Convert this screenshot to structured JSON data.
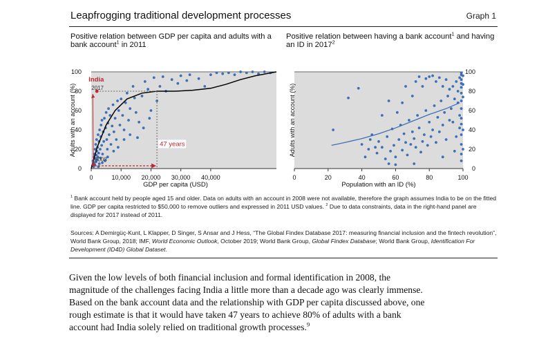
{
  "figure": {
    "title": "Leapfrogging traditional development processes",
    "graph_label": "Graph 1"
  },
  "left_panel": {
    "title": "Positive relation between GDP per capita and adults with a bank account",
    "title_sup": "1",
    "title_suffix": " in 2011"
  },
  "right_panel": {
    "title": "Positive relation between having a bank account",
    "title_sup1": "1",
    "title_mid": " and having an ID in 2017",
    "title_sup2": "2"
  },
  "footnote": {
    "sup1": "1",
    "text1": " Bank account held by people aged 15 and older. Data on adults with an account in 2008 were not available, therefore the graph assumes India to be on the fitted line. GDP per capita restricted to $50,000 to remove outliers and expressed in 2011 USD values. ",
    "sup2": "2",
    "text2": " Due to data constraints, data in the right-hand panel are displayed for 2017 instead of 2011."
  },
  "sources": {
    "t1": "Sources: A Demirgüç-Kunt, L Klapper, D Singer, S Ansar and J Hess, “The Global Findex Database 2017: measuring financial inclusion and the fintech revolution”, World Bank Group, 2018; IMF, ",
    "i1": "World Economic Outlook",
    "t2": ", October 2019; World Bank Group, ",
    "i2": "Global Findex Database",
    "t3": "; World Bank Group, ",
    "i3": "Identification For Development (ID4D) Global Dataset",
    "t4": "."
  },
  "body": {
    "text": "Given the low levels of both financial inclusion and formal identification in 2008, the magnitude of the challenges facing India a little more than a decade ago was clearly immense. Based on the bank account data and the relationship with GDP per capita discussed above, one rough estimate is that it would have taken 47 years to achieve 80% of adults with a bank account had India solely relied on traditional growth processes.",
    "sup": "9"
  },
  "colors": {
    "plot_bg": "#dcdcdc",
    "dots": "#3d6fb5",
    "fit_line_left": "#000000",
    "fit_line_right": "#3d6fb5",
    "india_annotation": "#c0262d",
    "reference_line": "#666666"
  },
  "chart_data": [
    {
      "type": "scatter",
      "title": "",
      "xlabel": "GDP per capita (USD)",
      "ylabel": "Adults with an account (%)",
      "xlim": [
        0,
        62000
      ],
      "ylim": [
        0,
        100
      ],
      "x_ticks": [
        "0",
        "10,000",
        "20,000",
        "30,000",
        "40,000"
      ],
      "x_tick_values": [
        0,
        10000,
        20000,
        30000,
        40000
      ],
      "y_ticks": [
        "0",
        "20",
        "40",
        "60",
        "80",
        "100"
      ],
      "y_tick_values": [
        0,
        20,
        40,
        60,
        80,
        100
      ],
      "grid": false,
      "points": [
        [
          400,
          3
        ],
        [
          600,
          8
        ],
        [
          800,
          2
        ],
        [
          900,
          12
        ],
        [
          1000,
          6
        ],
        [
          1100,
          15
        ],
        [
          1200,
          4
        ],
        [
          1300,
          20
        ],
        [
          1400,
          10
        ],
        [
          1500,
          25
        ],
        [
          1600,
          7
        ],
        [
          1700,
          14
        ],
        [
          1800,
          30
        ],
        [
          1900,
          18
        ],
        [
          2000,
          9
        ],
        [
          2100,
          22
        ],
        [
          2200,
          12
        ],
        [
          2300,
          35
        ],
        [
          2500,
          16
        ],
        [
          2600,
          28
        ],
        [
          2700,
          5
        ],
        [
          2800,
          40
        ],
        [
          3000,
          20
        ],
        [
          3100,
          11
        ],
        [
          3200,
          33
        ],
        [
          3300,
          45
        ],
        [
          3500,
          24
        ],
        [
          3600,
          50
        ],
        [
          3800,
          15
        ],
        [
          4000,
          38
        ],
        [
          4200,
          28
        ],
        [
          4400,
          52
        ],
        [
          4600,
          8
        ],
        [
          4800,
          42
        ],
        [
          5000,
          58
        ],
        [
          5200,
          30
        ],
        [
          5400,
          20
        ],
        [
          5600,
          47
        ],
        [
          5800,
          62
        ],
        [
          6000,
          35
        ],
        [
          6300,
          55
        ],
        [
          6600,
          25
        ],
        [
          7000,
          44
        ],
        [
          7300,
          66
        ],
        [
          7600,
          38
        ],
        [
          8000,
          52
        ],
        [
          8400,
          30
        ],
        [
          8800,
          70
        ],
        [
          9200,
          60
        ],
        [
          9600,
          45
        ],
        [
          10000,
          72
        ],
        [
          10500,
          55
        ],
        [
          11000,
          40
        ],
        [
          11500,
          68
        ],
        [
          12000,
          78
        ],
        [
          12500,
          50
        ],
        [
          13000,
          62
        ],
        [
          14000,
          85
        ],
        [
          14500,
          73
        ],
        [
          15000,
          58
        ],
        [
          16000,
          48
        ],
        [
          17000,
          75
        ],
        [
          18000,
          90
        ],
        [
          19000,
          82
        ],
        [
          20000,
          60
        ],
        [
          21000,
          94
        ],
        [
          22000,
          70
        ],
        [
          23000,
          85
        ],
        [
          24000,
          95
        ],
        [
          25000,
          80
        ],
        [
          27000,
          92
        ],
        [
          29000,
          88
        ],
        [
          30000,
          96
        ],
        [
          32000,
          91
        ],
        [
          33000,
          97
        ],
        [
          36000,
          93
        ],
        [
          38000,
          85
        ],
        [
          40000,
          97
        ],
        [
          42000,
          99
        ],
        [
          44000,
          98
        ],
        [
          46000,
          99
        ],
        [
          48000,
          97
        ],
        [
          50000,
          100
        ],
        [
          52000,
          99
        ],
        [
          54000,
          100
        ],
        [
          56000,
          98
        ],
        [
          58000,
          100
        ],
        [
          60000,
          99
        ],
        [
          9000,
          22
        ],
        [
          11000,
          30
        ],
        [
          13000,
          35
        ],
        [
          15500,
          32
        ],
        [
          17500,
          42
        ],
        [
          19500,
          52
        ],
        [
          5500,
          12
        ],
        [
          7500,
          18
        ],
        [
          3700,
          6
        ],
        [
          2400,
          2
        ]
      ],
      "fitted_line": [
        [
          0,
          0
        ],
        [
          2000,
          22
        ],
        [
          5000,
          45
        ],
        [
          8000,
          60
        ],
        [
          12000,
          72
        ],
        [
          17000,
          78
        ],
        [
          22000,
          80
        ],
        [
          28000,
          80
        ],
        [
          34000,
          81
        ],
        [
          40000,
          83
        ],
        [
          45000,
          87
        ],
        [
          50000,
          92
        ],
        [
          55000,
          96
        ],
        [
          62000,
          100
        ]
      ],
      "annotations": {
        "india_label": "India",
        "year_2017": "2017",
        "year_2008": "2008",
        "gap_label": "47 years",
        "india_2008": [
          700,
          4
        ],
        "india_2017": [
          1900,
          80
        ],
        "target": [
          22000,
          80
        ]
      }
    },
    {
      "type": "scatter",
      "title": "",
      "xlabel": "Population with an ID (%)",
      "ylabel": "Adults with an account (%)",
      "xlim": [
        0,
        100
      ],
      "ylim": [
        0,
        100
      ],
      "x_ticks": [
        "0",
        "20",
        "40",
        "60",
        "80",
        "100"
      ],
      "x_tick_values": [
        0,
        20,
        40,
        60,
        80,
        100
      ],
      "y_ticks": [
        "0",
        "20",
        "40",
        "60",
        "80",
        "100"
      ],
      "y_tick_values": [
        0,
        20,
        40,
        60,
        80,
        100
      ],
      "grid": false,
      "points": [
        [
          23,
          40
        ],
        [
          32,
          73
        ],
        [
          38,
          83
        ],
        [
          44,
          20
        ],
        [
          46,
          35
        ],
        [
          49,
          16
        ],
        [
          50,
          28
        ],
        [
          52,
          22
        ],
        [
          54,
          10
        ],
        [
          55,
          33
        ],
        [
          57,
          18
        ],
        [
          58,
          41
        ],
        [
          59,
          24
        ],
        [
          60,
          12
        ],
        [
          62,
          30
        ],
        [
          63,
          45
        ],
        [
          64,
          19
        ],
        [
          65,
          36
        ],
        [
          66,
          27
        ],
        [
          67,
          14
        ],
        [
          68,
          50
        ],
        [
          69,
          25
        ],
        [
          70,
          38
        ],
        [
          71,
          31
        ],
        [
          72,
          22
        ],
        [
          73,
          55
        ],
        [
          74,
          42
        ],
        [
          75,
          17
        ],
        [
          76,
          28
        ],
        [
          77,
          35
        ],
        [
          78,
          60
        ],
        [
          79,
          24
        ],
        [
          80,
          48
        ],
        [
          81,
          33
        ],
        [
          82,
          40
        ],
        [
          83,
          65
        ],
        [
          84,
          27
        ],
        [
          85,
          53
        ],
        [
          86,
          38
        ],
        [
          87,
          70
        ],
        [
          88,
          45
        ],
        [
          89,
          58
        ],
        [
          90,
          30
        ],
        [
          91,
          75
        ],
        [
          92,
          50
        ],
        [
          93,
          62
        ],
        [
          94,
          85
        ],
        [
          95,
          72
        ],
        [
          96,
          90
        ],
        [
          97,
          68
        ],
        [
          97,
          80
        ],
        [
          98,
          94
        ],
        [
          98,
          55
        ],
        [
          99,
          88
        ],
        [
          99,
          97
        ],
        [
          99,
          78
        ],
        [
          99,
          62
        ],
        [
          99,
          46
        ],
        [
          99,
          35
        ],
        [
          99,
          25
        ],
        [
          99,
          15
        ],
        [
          99,
          8
        ],
        [
          99,
          52
        ],
        [
          99,
          70
        ],
        [
          99,
          84
        ],
        [
          99,
          92
        ],
        [
          99,
          99
        ],
        [
          100,
          96
        ],
        [
          100,
          87
        ],
        [
          100,
          74
        ],
        [
          100,
          40
        ],
        [
          100,
          20
        ],
        [
          98,
          42
        ],
        [
          96,
          33
        ],
        [
          94,
          48
        ],
        [
          92,
          82
        ],
        [
          90,
          92
        ],
        [
          88,
          85
        ],
        [
          86,
          94
        ],
        [
          84,
          90
        ],
        [
          82,
          96
        ],
        [
          80,
          95
        ],
        [
          78,
          93
        ],
        [
          76,
          85
        ],
        [
          74,
          95
        ],
        [
          72,
          90
        ],
        [
          70,
          75
        ],
        [
          66,
          85
        ],
        [
          64,
          68
        ],
        [
          61,
          58
        ],
        [
          56,
          70
        ],
        [
          52,
          55
        ],
        [
          48,
          22
        ],
        [
          45,
          30
        ],
        [
          42,
          12
        ],
        [
          40,
          25
        ],
        [
          56,
          5
        ],
        [
          60,
          4
        ],
        [
          71,
          5
        ],
        [
          88,
          12
        ],
        [
          95,
          18
        ]
      ],
      "fitted_line": [
        [
          22,
          24
        ],
        [
          30,
          27
        ],
        [
          40,
          31
        ],
        [
          50,
          36
        ],
        [
          60,
          42
        ],
        [
          70,
          49
        ],
        [
          80,
          56
        ],
        [
          90,
          62
        ],
        [
          98,
          68
        ]
      ]
    }
  ]
}
